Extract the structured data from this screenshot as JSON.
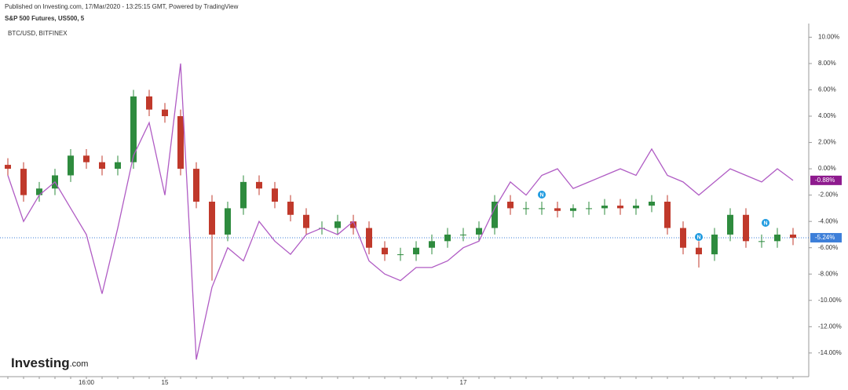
{
  "header": {
    "published": "Published on Investing.com, 17/Mar/2020 - 13:25:15 GMT, Powered by TradingView",
    "logo": "Investing",
    "logo_suffix": ".com"
  },
  "chart_data": {
    "type": "candlestick",
    "categories": [
      null,
      null,
      null,
      null,
      null,
      "16:00",
      null,
      null,
      null,
      null,
      "15",
      null,
      null,
      null,
      null,
      null,
      null,
      null,
      null,
      null,
      null,
      null,
      null,
      null,
      null,
      null,
      null,
      null,
      null,
      "17",
      null,
      null,
      null,
      null,
      null,
      null,
      null,
      null,
      null,
      null,
      null,
      null,
      null,
      null,
      null,
      null,
      null,
      null,
      null,
      null,
      null
    ],
    "ylim": [
      -15.5,
      10.8
    ],
    "yticks": [
      {
        "value": 10,
        "label": "10.00%"
      },
      {
        "value": 8,
        "label": "8.00%"
      },
      {
        "value": 6,
        "label": "6.00%"
      },
      {
        "value": 4,
        "label": "4.00%"
      },
      {
        "value": 2,
        "label": "2.00%"
      },
      {
        "value": 0,
        "label": "0.00%"
      },
      {
        "value": -2,
        "label": "-2.00%"
      },
      {
        "value": -4,
        "label": "-4.00%"
      },
      {
        "value": -6,
        "label": "-6.00%"
      },
      {
        "value": -8,
        "label": "-8.00%"
      },
      {
        "value": -10,
        "label": "-10.00%"
      },
      {
        "value": -12,
        "label": "-12.00%"
      },
      {
        "value": -14,
        "label": "-14.00%"
      }
    ],
    "series": [
      {
        "name": "S&P 500 Futures, US500, 5",
        "type": "candlestick",
        "up_color": "#2e8b3e",
        "down_color": "#c0392b",
        "last_color": "#3d7fd9",
        "last_value_label": "-5.24%",
        "open": [
          0.3,
          0,
          -2,
          -1.5,
          -0.5,
          1,
          0.5,
          0,
          0.5,
          5.5,
          4.5,
          4,
          0,
          -2.5,
          -5,
          -3,
          -1,
          -1.5,
          -2.5,
          -3.5,
          -4.5,
          -4.5,
          -4,
          -4.5,
          -6,
          -6.5,
          -6.5,
          -6,
          -5.5,
          -5,
          -5,
          -4.5,
          -2.5,
          -3,
          -3,
          -3,
          -3.2,
          -3,
          -3,
          -2.8,
          -3,
          -2.8,
          -2.5,
          -4.5,
          -6,
          -6.5,
          -5,
          -3.5,
          -5.5,
          -5.5,
          -5
        ],
        "high": [
          0.8,
          0.5,
          -1,
          0,
          1.5,
          1.5,
          1,
          1,
          6,
          6,
          5,
          4.5,
          0.5,
          -2,
          -2.5,
          -0.5,
          -0.5,
          -1,
          -2,
          -3,
          -4,
          -3.5,
          -3.5,
          -4,
          -5.5,
          -6,
          -5.5,
          -5,
          -4.5,
          -4.5,
          -4,
          -2,
          -2,
          -2.5,
          -2.5,
          -2.5,
          -2.7,
          -2.5,
          -2.3,
          -2.3,
          -2.3,
          -2,
          -2,
          -4,
          -5.5,
          -4.5,
          -3,
          -3,
          -5,
          -4.5,
          -4.5
        ],
        "low": [
          -0.5,
          -2.5,
          -2.5,
          -2,
          -1,
          0,
          -0.5,
          -0.5,
          0,
          4,
          3.5,
          -0.5,
          -3,
          -8.5,
          -5.5,
          -3.5,
          -2,
          -3,
          -4,
          -5,
          -5,
          -5,
          -5,
          -6.5,
          -7,
          -7,
          -7,
          -6.5,
          -6,
          -5.5,
          -5.5,
          -5,
          -3.5,
          -3.5,
          -3.5,
          -3.7,
          -3.7,
          -3.5,
          -3.5,
          -3.5,
          -3.5,
          -3.3,
          -5,
          -6.5,
          -7.5,
          -7,
          -5.5,
          -6,
          -6,
          -6,
          -5.8
        ],
        "close": [
          0,
          -2,
          -1.5,
          -0.5,
          1,
          0.5,
          0,
          0.5,
          5.5,
          4.5,
          4,
          0,
          -2.5,
          -5,
          -3,
          -1,
          -1.5,
          -2.5,
          -3.5,
          -4.5,
          -4.5,
          -4,
          -4.5,
          -6,
          -6.5,
          -6.5,
          -6,
          -5.5,
          -5,
          -5,
          -4.5,
          -2.5,
          -3,
          -3,
          -3,
          -3.2,
          -3,
          -3,
          -2.8,
          -3,
          -2.8,
          -2.5,
          -4.5,
          -6,
          -6.5,
          -5,
          -3.5,
          -5.5,
          -5.5,
          -5,
          -5.24
        ]
      },
      {
        "name": "BTC/USD, BITFINEX",
        "type": "line",
        "color": "#b05cc4",
        "last_value_label": "-0.88%",
        "values": [
          -0.5,
          -4,
          -2,
          -1,
          -3,
          -5,
          -9.5,
          -4.5,
          1,
          3.5,
          -2,
          8,
          -14.5,
          -9,
          -6,
          -7,
          -4,
          -5.5,
          -6.5,
          -5,
          -4.5,
          -5,
          -4,
          -7,
          -8,
          -8.5,
          -7.5,
          -7.5,
          -7,
          -6,
          -5.5,
          -3,
          -1,
          -2,
          -0.5,
          0,
          -1.5,
          -1,
          -0.5,
          0,
          -0.5,
          1.5,
          -0.5,
          -1,
          -2,
          -1,
          0,
          -0.5,
          -1,
          0,
          -0.88
        ]
      }
    ],
    "annotations": [
      "N",
      "N",
      "N"
    ]
  }
}
